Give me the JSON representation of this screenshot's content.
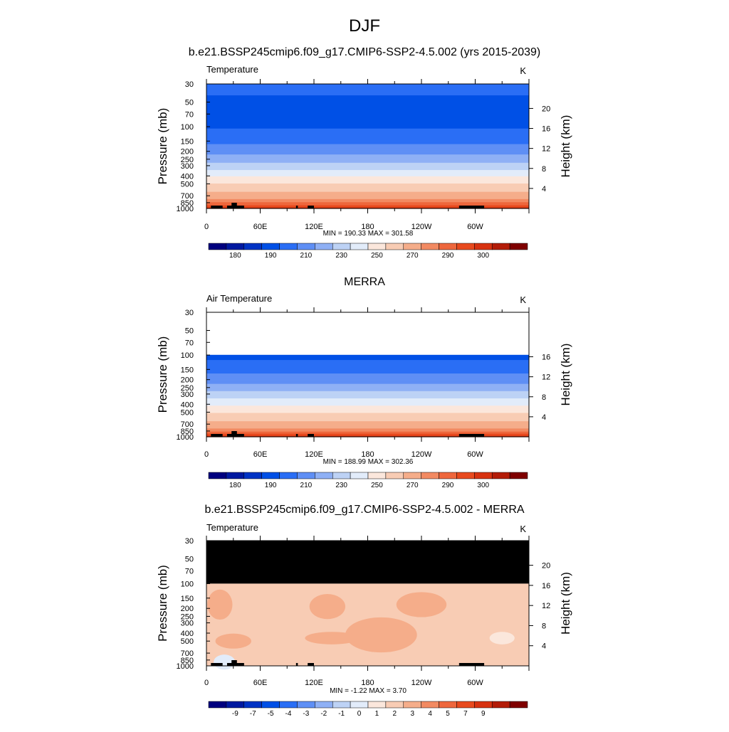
{
  "figure": {
    "title": "DJF"
  },
  "colors": {
    "abs_palette": [
      "#00007f",
      "#0019a0",
      "#0033c4",
      "#0050e6",
      "#2a6ef5",
      "#5f8ff5",
      "#8fb0f5",
      "#bdd2f5",
      "#e2ecfa",
      "#fbe7dc",
      "#f8ccb4",
      "#f5ad8a",
      "#f28a62",
      "#ee673d",
      "#e84a1e",
      "#d73210",
      "#b31c08",
      "#7f0000"
    ],
    "diff_palette": [
      "#00007f",
      "#0019a0",
      "#0033c4",
      "#0050e6",
      "#2a6ef5",
      "#5f8ff5",
      "#8fb0f5",
      "#bdd2f5",
      "#e2ecfa",
      "#fbe7dc",
      "#f8ccb4",
      "#f5ad8a",
      "#f28a62",
      "#ee673d",
      "#e84a1e",
      "#d73210",
      "#b31c08",
      "#7f0000"
    ]
  },
  "chart_data": [
    {
      "type": "heatmap",
      "title": "b.e21.BSSP245cmip6.f09_g17.CMIP6-SSP2-4.5.002 (yrs 2015-2039)",
      "left_label": "Temperature",
      "units": "K",
      "ylabel": "Pressure (mb)",
      "ylabel_right": "Height (km)",
      "xlabel": "",
      "pressure_ticks": [
        30,
        50,
        70,
        100,
        150,
        200,
        250,
        300,
        400,
        500,
        700,
        850,
        1000
      ],
      "height_ticks": [
        20,
        16,
        12,
        8,
        4
      ],
      "x_ticks": [
        "0",
        "60E",
        "120E",
        "180",
        "120W",
        "60W"
      ],
      "xlim": [
        0,
        360
      ],
      "ylim": [
        1000,
        30
      ],
      "stats": "MIN = 190.33  MAX = 301.58",
      "min": 190.33,
      "max": 301.58,
      "colorbar_labels": [
        "180",
        "190",
        "210",
        "230",
        "250",
        "270",
        "290",
        "300"
      ],
      "level_bounds": [
        175,
        180,
        185,
        190,
        200,
        210,
        220,
        230,
        240,
        250,
        260,
        270,
        280,
        285,
        290,
        295,
        300,
        305,
        310
      ],
      "profile": [
        {
          "p": 30,
          "t": 205
        },
        {
          "p": 50,
          "t": 197
        },
        {
          "p": 70,
          "t": 197
        },
        {
          "p": 100,
          "t": 199
        },
        {
          "p": 150,
          "t": 207
        },
        {
          "p": 200,
          "t": 216
        },
        {
          "p": 250,
          "t": 226
        },
        {
          "p": 300,
          "t": 234
        },
        {
          "p": 400,
          "t": 249
        },
        {
          "p": 500,
          "t": 260
        },
        {
          "p": 700,
          "t": 275
        },
        {
          "p": 850,
          "t": 285
        },
        {
          "p": 1000,
          "t": 296
        }
      ]
    },
    {
      "type": "heatmap",
      "title": "MERRA",
      "left_label": "Air Temperature",
      "units": "K",
      "ylabel": "Pressure (mb)",
      "ylabel_right": "Height (km)",
      "xlabel": "",
      "pressure_ticks": [
        30,
        50,
        70,
        100,
        150,
        200,
        250,
        300,
        400,
        500,
        700,
        850,
        1000
      ],
      "height_ticks": [
        16,
        12,
        8,
        4
      ],
      "x_ticks": [
        "0",
        "60E",
        "120E",
        "180",
        "120W",
        "60W"
      ],
      "xlim": [
        0,
        360
      ],
      "ylim": [
        1000,
        30
      ],
      "data_top_pressure": 100,
      "stats": "MIN = 188.99  MAX = 302.36",
      "min": 188.99,
      "max": 302.36,
      "colorbar_labels": [
        "180",
        "190",
        "210",
        "230",
        "250",
        "270",
        "290",
        "300"
      ],
      "level_bounds": [
        175,
        180,
        185,
        190,
        200,
        210,
        220,
        230,
        240,
        250,
        260,
        270,
        280,
        285,
        290,
        295,
        300,
        305,
        310
      ],
      "profile": [
        {
          "p": 100,
          "t": 197
        },
        {
          "p": 150,
          "t": 206
        },
        {
          "p": 200,
          "t": 215
        },
        {
          "p": 250,
          "t": 225
        },
        {
          "p": 300,
          "t": 233
        },
        {
          "p": 400,
          "t": 248
        },
        {
          "p": 500,
          "t": 259
        },
        {
          "p": 700,
          "t": 274
        },
        {
          "p": 850,
          "t": 284
        },
        {
          "p": 1000,
          "t": 297
        }
      ]
    },
    {
      "type": "heatmap",
      "title": "b.e21.BSSP245cmip6.f09_g17.CMIP6-SSP2-4.5.002 - MERRA",
      "left_label": "Temperature",
      "units": "K",
      "ylabel": "Pressure (mb)",
      "ylabel_right": "Height (km)",
      "xlabel": "",
      "pressure_ticks": [
        30,
        50,
        70,
        100,
        150,
        200,
        250,
        300,
        400,
        500,
        700,
        850,
        1000
      ],
      "height_ticks": [
        20,
        16,
        12,
        8,
        4
      ],
      "x_ticks": [
        "0",
        "60E",
        "120E",
        "180",
        "120W",
        "60W"
      ],
      "xlim": [
        0,
        360
      ],
      "ylim": [
        1000,
        30
      ],
      "missing_above_pressure": 100,
      "stats": "MIN =  -1.22  MAX =   3.70",
      "min": -1.22,
      "max": 3.7,
      "colorbar_labels": [
        "-9",
        "-7",
        "-5",
        "-4",
        "-3",
        "-2",
        "-1",
        "0",
        "1",
        "2",
        "3",
        "4",
        "5",
        "7",
        "9"
      ],
      "background_value": 1.5,
      "anomalies": [
        {
          "lon": 15,
          "p": 180,
          "value": 2.5,
          "rlon": 14,
          "rp": 0.12
        },
        {
          "lon": 135,
          "p": 190,
          "value": 2.5,
          "rlon": 20,
          "rp": 0.1
        },
        {
          "lon": 240,
          "p": 180,
          "value": 2.5,
          "rlon": 28,
          "rp": 0.1
        },
        {
          "lon": 195,
          "p": 420,
          "value": 2.5,
          "rlon": 40,
          "rp": 0.14
        },
        {
          "lon": 30,
          "p": 500,
          "value": 2.5,
          "rlon": 20,
          "rp": 0.06
        },
        {
          "lon": 140,
          "p": 460,
          "value": 2.5,
          "rlon": 30,
          "rp": 0.05
        },
        {
          "lon": 330,
          "p": 460,
          "value": 0.5,
          "rlon": 14,
          "rp": 0.05
        },
        {
          "lon": 20,
          "p": 900,
          "value": -0.5,
          "rlon": 12,
          "rp": 0.06
        }
      ]
    }
  ]
}
